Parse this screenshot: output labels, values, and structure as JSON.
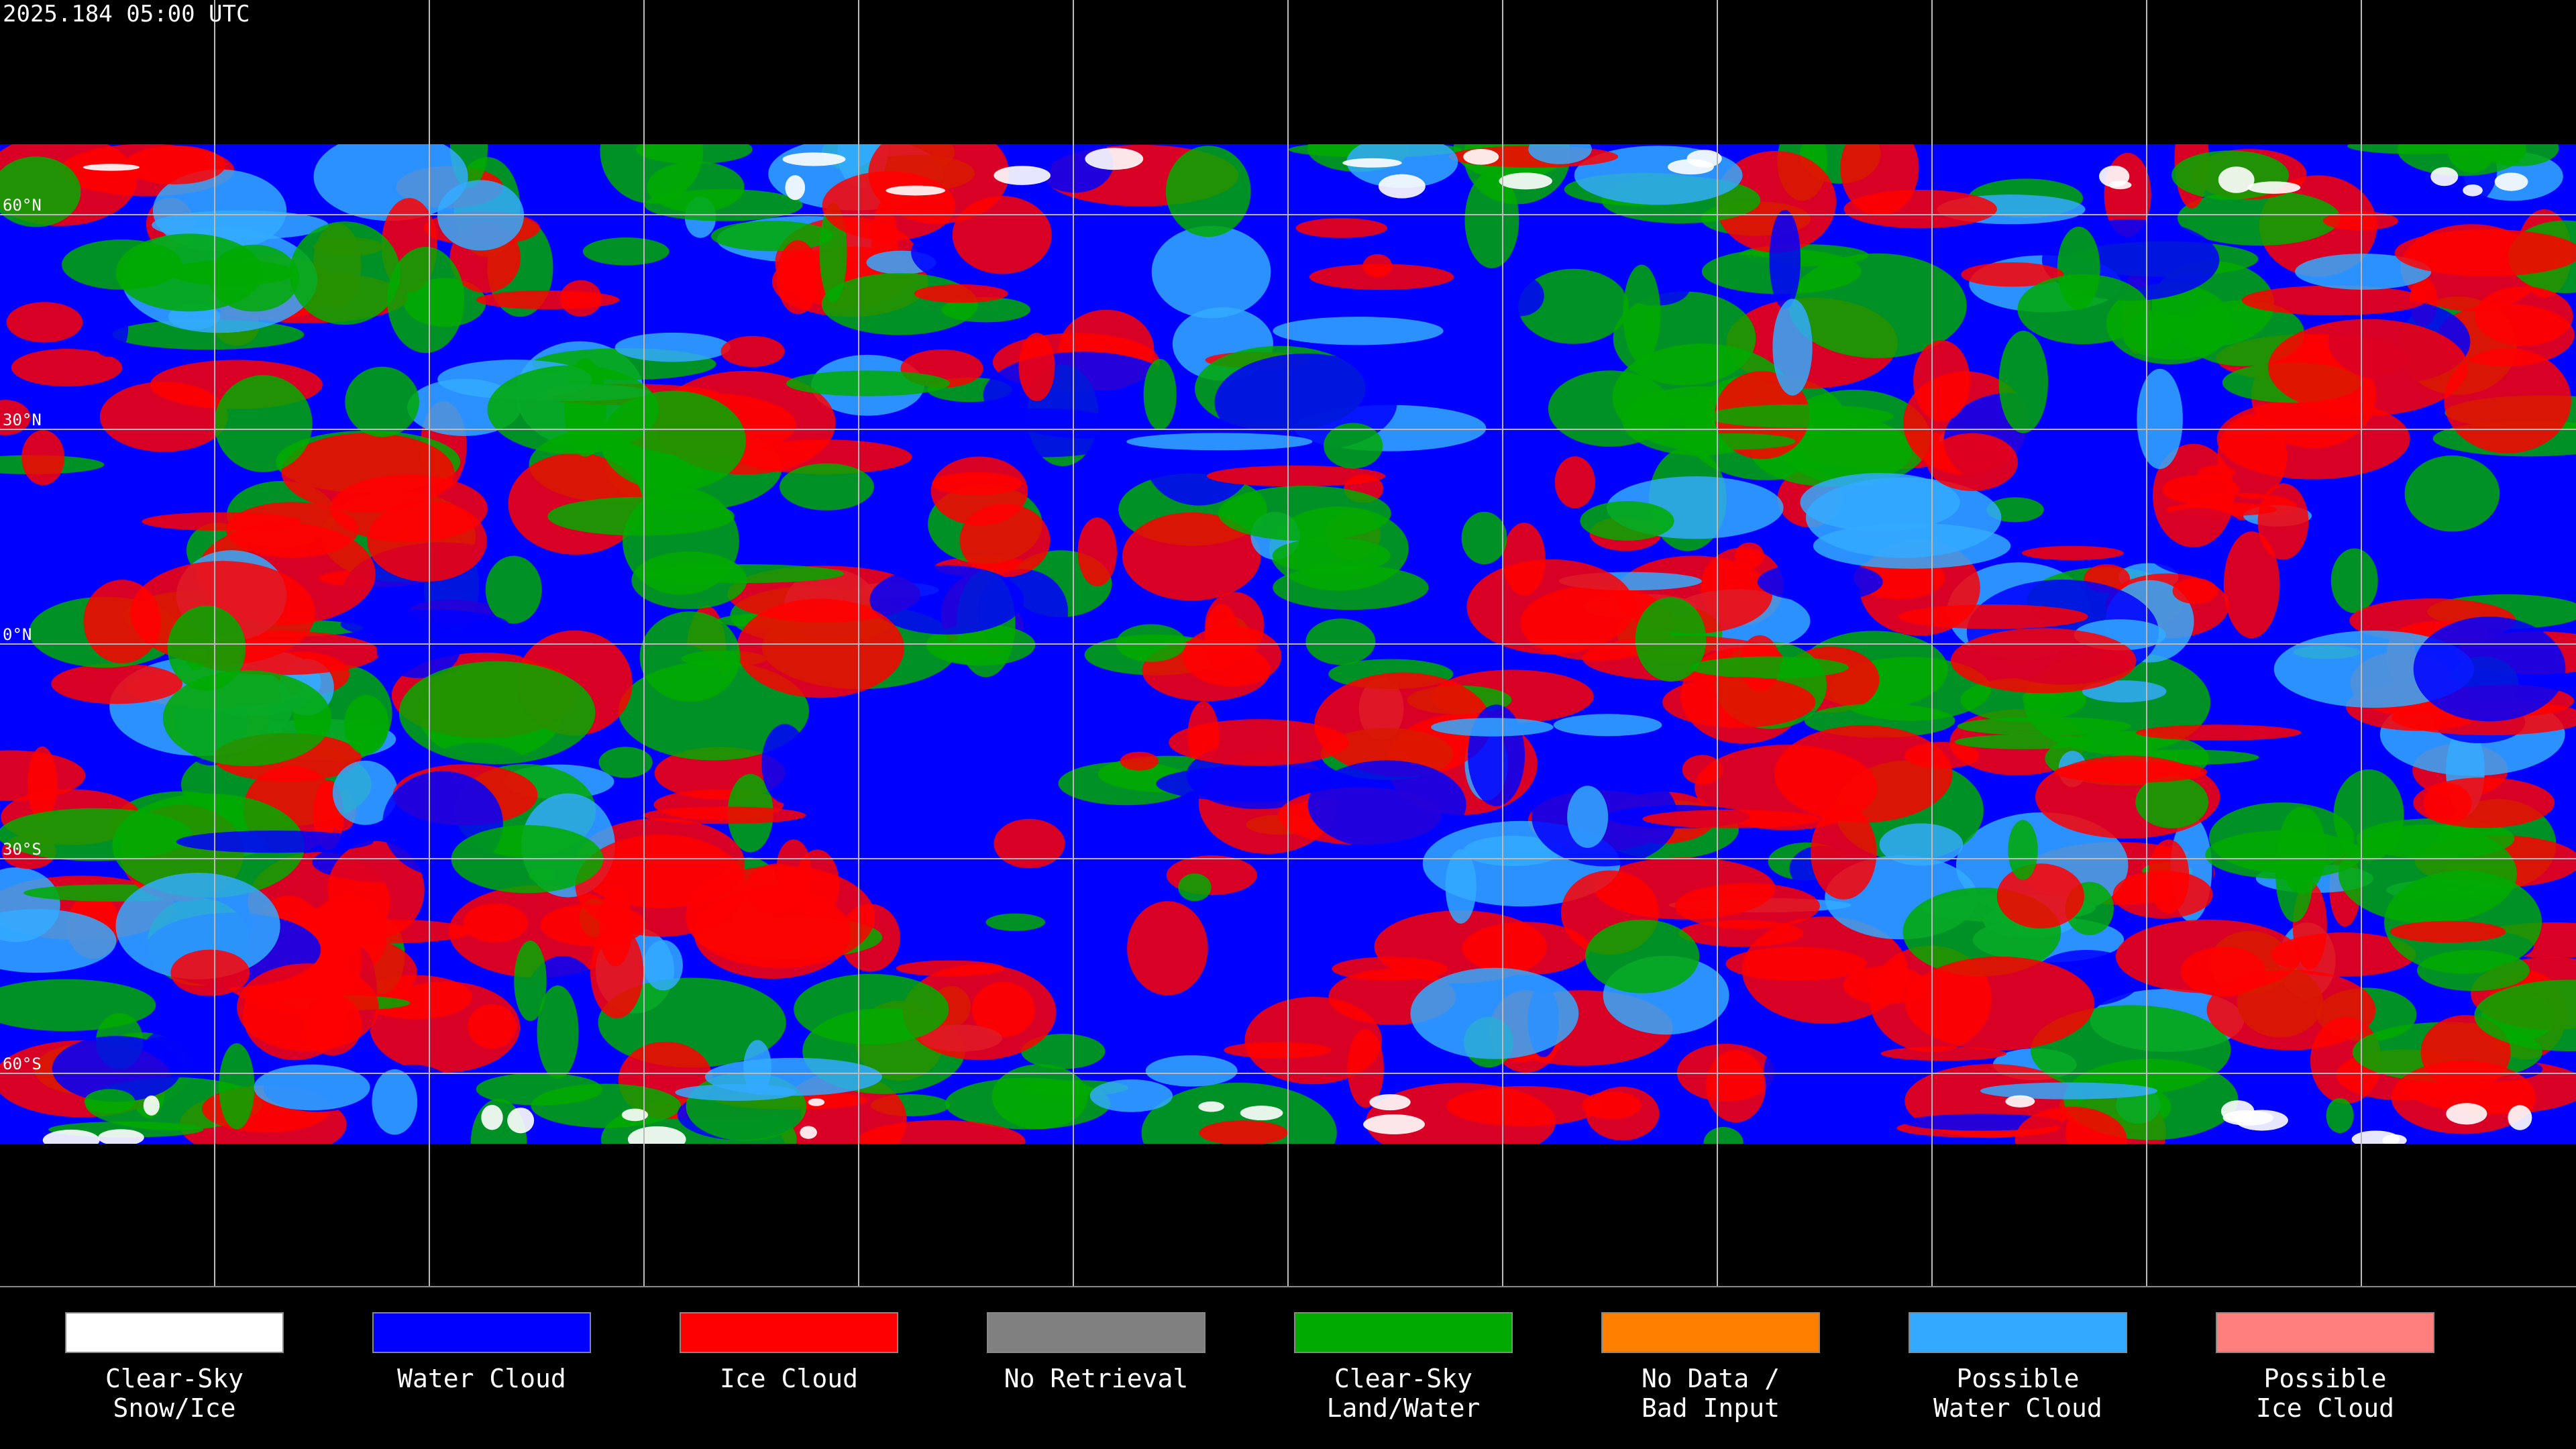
{
  "header": {
    "timestamp": "2025.184 05:00 UTC"
  },
  "map": {
    "latitude_labels": [
      "60°N",
      "30°N",
      "0°N",
      "30°S",
      "60°S"
    ]
  },
  "legend": {
    "items": [
      {
        "lines": [
          "Clear-Sky",
          "Snow/Ice"
        ],
        "color": "#ffffff"
      },
      {
        "lines": [
          "Water Cloud"
        ],
        "color": "#0000ff"
      },
      {
        "lines": [
          "Ice Cloud"
        ],
        "color": "#ff0000"
      },
      {
        "lines": [
          "No Retrieval"
        ],
        "color": "#808080"
      },
      {
        "lines": [
          "Clear-Sky",
          "Land/Water"
        ],
        "color": "#00aa00"
      },
      {
        "lines": [
          "No Data /",
          "Bad Input"
        ],
        "color": "#ff8000"
      },
      {
        "lines": [
          "Possible",
          "Water Cloud"
        ],
        "color": "#33aaff"
      },
      {
        "lines": [
          "Possible",
          "Ice Cloud"
        ],
        "color": "#ff7f7f"
      }
    ]
  }
}
